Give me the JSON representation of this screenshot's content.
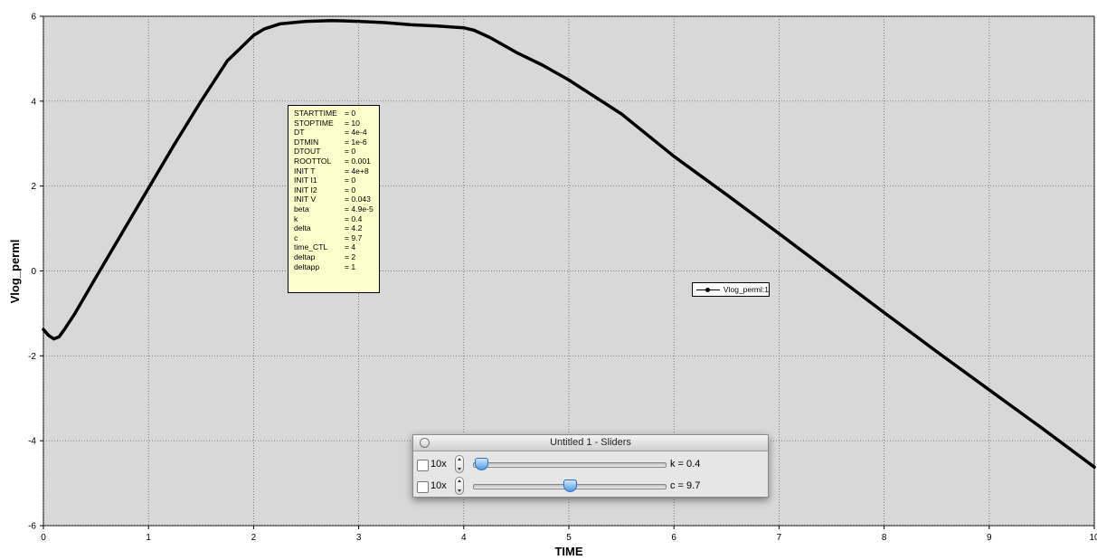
{
  "chart_data": {
    "type": "line",
    "xlabel": "TIME",
    "ylabel": "Vlog_perml",
    "xlim": [
      0,
      10
    ],
    "ylim": [
      -6,
      6
    ],
    "x_ticks": [
      0,
      1,
      2,
      3,
      4,
      5,
      6,
      7,
      8,
      9,
      10
    ],
    "y_ticks": [
      -6,
      -4,
      -2,
      0,
      2,
      4,
      6
    ],
    "grid": true,
    "legend_position": "center-right",
    "series": [
      {
        "name": "Vlog_perml:1",
        "color": "#000000",
        "marker": "dot",
        "x": [
          0,
          0.05,
          0.1,
          0.15,
          0.2,
          0.3,
          0.5,
          0.75,
          1.0,
          1.25,
          1.5,
          1.75,
          2.0,
          2.1,
          2.25,
          2.5,
          2.75,
          3.0,
          3.25,
          3.5,
          3.75,
          4.0,
          4.1,
          4.25,
          4.5,
          4.75,
          5.0,
          5.5,
          6.0,
          6.5,
          7.0,
          7.5,
          8.0,
          8.5,
          9.0,
          9.5,
          10.0
        ],
        "y": [
          -1.38,
          -1.52,
          -1.6,
          -1.55,
          -1.38,
          -1.0,
          -0.15,
          0.9,
          1.95,
          3.0,
          4.0,
          4.95,
          5.55,
          5.7,
          5.82,
          5.88,
          5.9,
          5.88,
          5.85,
          5.8,
          5.77,
          5.73,
          5.67,
          5.5,
          5.15,
          4.85,
          4.5,
          3.7,
          2.7,
          1.8,
          0.88,
          -0.05,
          -0.98,
          -1.9,
          -2.8,
          -3.7,
          -4.62
        ]
      }
    ]
  },
  "params": [
    {
      "name": "STARTTIME",
      "value": "= 0"
    },
    {
      "name": "STOPTIME",
      "value": "= 10"
    },
    {
      "name": "DT",
      "value": "= 4e-4"
    },
    {
      "name": "DTMIN",
      "value": "= 1e-6"
    },
    {
      "name": "DTOUT",
      "value": "= 0"
    },
    {
      "name": "ROOTTOL",
      "value": "= 0.001"
    },
    {
      "name": "INIT T",
      "value": "= 4e+8"
    },
    {
      "name": "INIT I1",
      "value": "= 0"
    },
    {
      "name": "INIT I2",
      "value": "= 0"
    },
    {
      "name": "INIT V",
      "value": "= 0.043"
    },
    {
      "name": "beta",
      "value": "= 4.9e-5"
    },
    {
      "name": "k",
      "value": "= 0.4"
    },
    {
      "name": "delta",
      "value": "= 4.2"
    },
    {
      "name": "c",
      "value": "= 9.7"
    },
    {
      "name": "time_CTL",
      "value": "= 4"
    },
    {
      "name": "deltap",
      "value": "= 2"
    },
    {
      "name": "deltapp",
      "value": "= 1"
    }
  ],
  "slider_window": {
    "title": "Untitled 1 - Sliders",
    "sliders": [
      {
        "multiplier": "10x",
        "label": "k = 0.4",
        "position_fraction": 0.04
      },
      {
        "multiplier": "10x",
        "label": "c = 9.7",
        "position_fraction": 0.5
      }
    ]
  }
}
